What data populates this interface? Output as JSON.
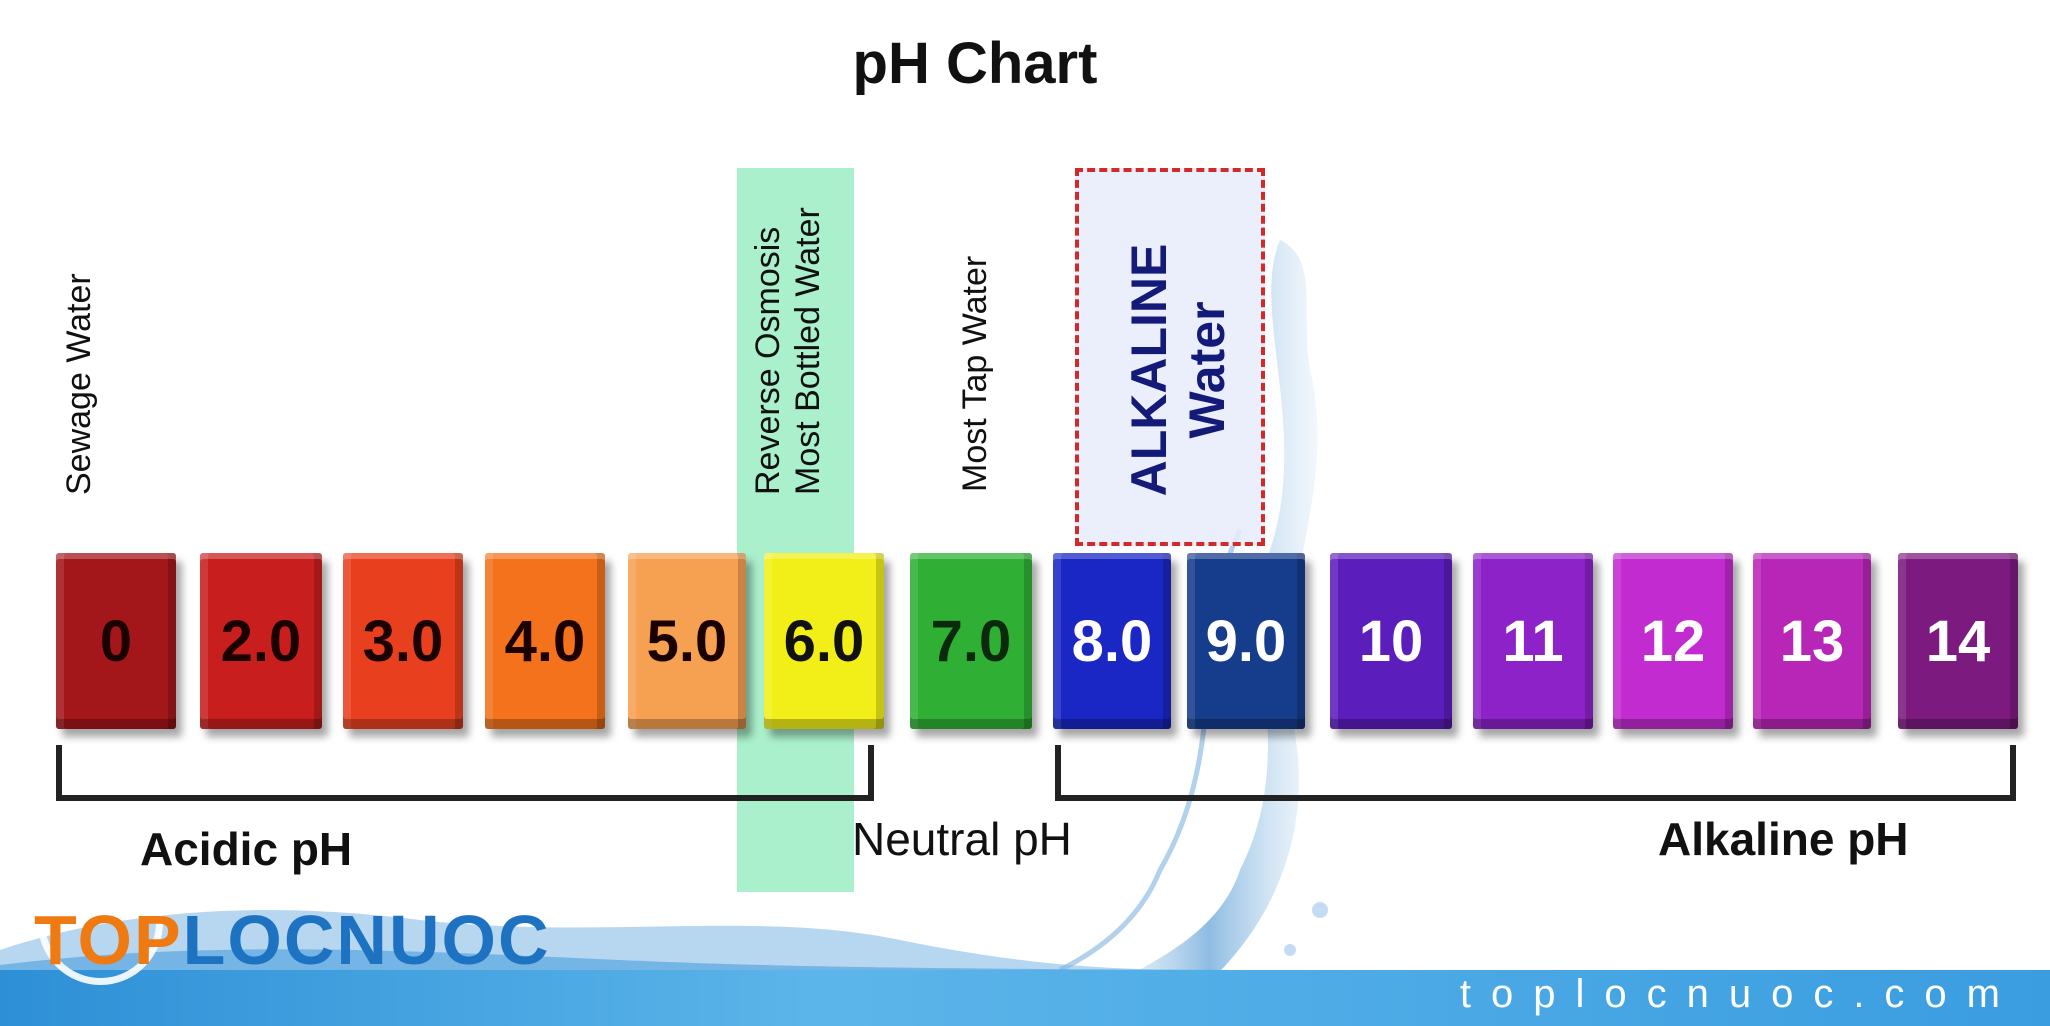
{
  "title": "pH Chart",
  "annotations": {
    "sewage": "Sewage Water",
    "ro_line1": "Reverse Osmosis",
    "ro_line2": "Most Bottled Water",
    "tap": "Most Tap Water",
    "alkaline_line1": "ALKALINE",
    "alkaline_line2": "Water"
  },
  "scale": [
    {
      "label": "0",
      "color": "#a3161a",
      "text_color": "#1a0000"
    },
    {
      "label": "2.0",
      "color": "#c81f1e",
      "text_color": "#1a0000"
    },
    {
      "label": "3.0",
      "color": "#e8401f",
      "text_color": "#1a0000"
    },
    {
      "label": "4.0",
      "color": "#f4721c",
      "text_color": "#1a0000"
    },
    {
      "label": "5.0",
      "color": "#f6a052",
      "text_color": "#1a0000"
    },
    {
      "label": "6.0",
      "color": "#f2ef18",
      "text_color": "#111111"
    },
    {
      "label": "7.0",
      "color": "#2fb034",
      "text_color": "#0b2a0b"
    },
    {
      "label": "8.0",
      "color": "#1a27c4",
      "text_color": "#ffffff"
    },
    {
      "label": "9.0",
      "color": "#163c8c",
      "text_color": "#ffffff"
    },
    {
      "label": "10",
      "color": "#5c1dbd",
      "text_color": "#ffffff"
    },
    {
      "label": "11",
      "color": "#8d22c9",
      "text_color": "#ffffff"
    },
    {
      "label": "12",
      "color": "#c22bcf",
      "text_color": "#ffffff"
    },
    {
      "label": "13",
      "color": "#b826b7",
      "text_color": "#ffffff"
    },
    {
      "label": "14",
      "color": "#7d1a7f",
      "text_color": "#ffffff"
    }
  ],
  "ranges": {
    "acidic": "Acidic pH",
    "neutral": "Neutral pH",
    "alkaline": "Alkaline pH"
  },
  "brand": {
    "logo_top": "TOP",
    "logo_rest": "LOCNUOC",
    "website": "toplocnuoc.com"
  }
}
